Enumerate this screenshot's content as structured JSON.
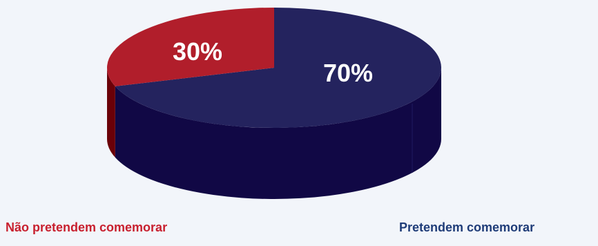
{
  "chart_data": {
    "type": "pie",
    "style": "3d",
    "slices": [
      {
        "label": "Pretendem comemorar",
        "value": 70,
        "value_label": "70%",
        "color": "#24235e",
        "side_color": "#110845"
      },
      {
        "label": "Não pretendem comemorar",
        "value": 30,
        "value_label": "30%",
        "color": "#b11e2b",
        "side_color": "#6b0008"
      }
    ],
    "legend": [
      {
        "label": "Não pretendem comemorar",
        "color": "#c8202f",
        "placement": "bottom-left"
      },
      {
        "label": "Pretendem comemorar",
        "color": "#1f3c78",
        "placement": "bottom-right"
      }
    ]
  }
}
